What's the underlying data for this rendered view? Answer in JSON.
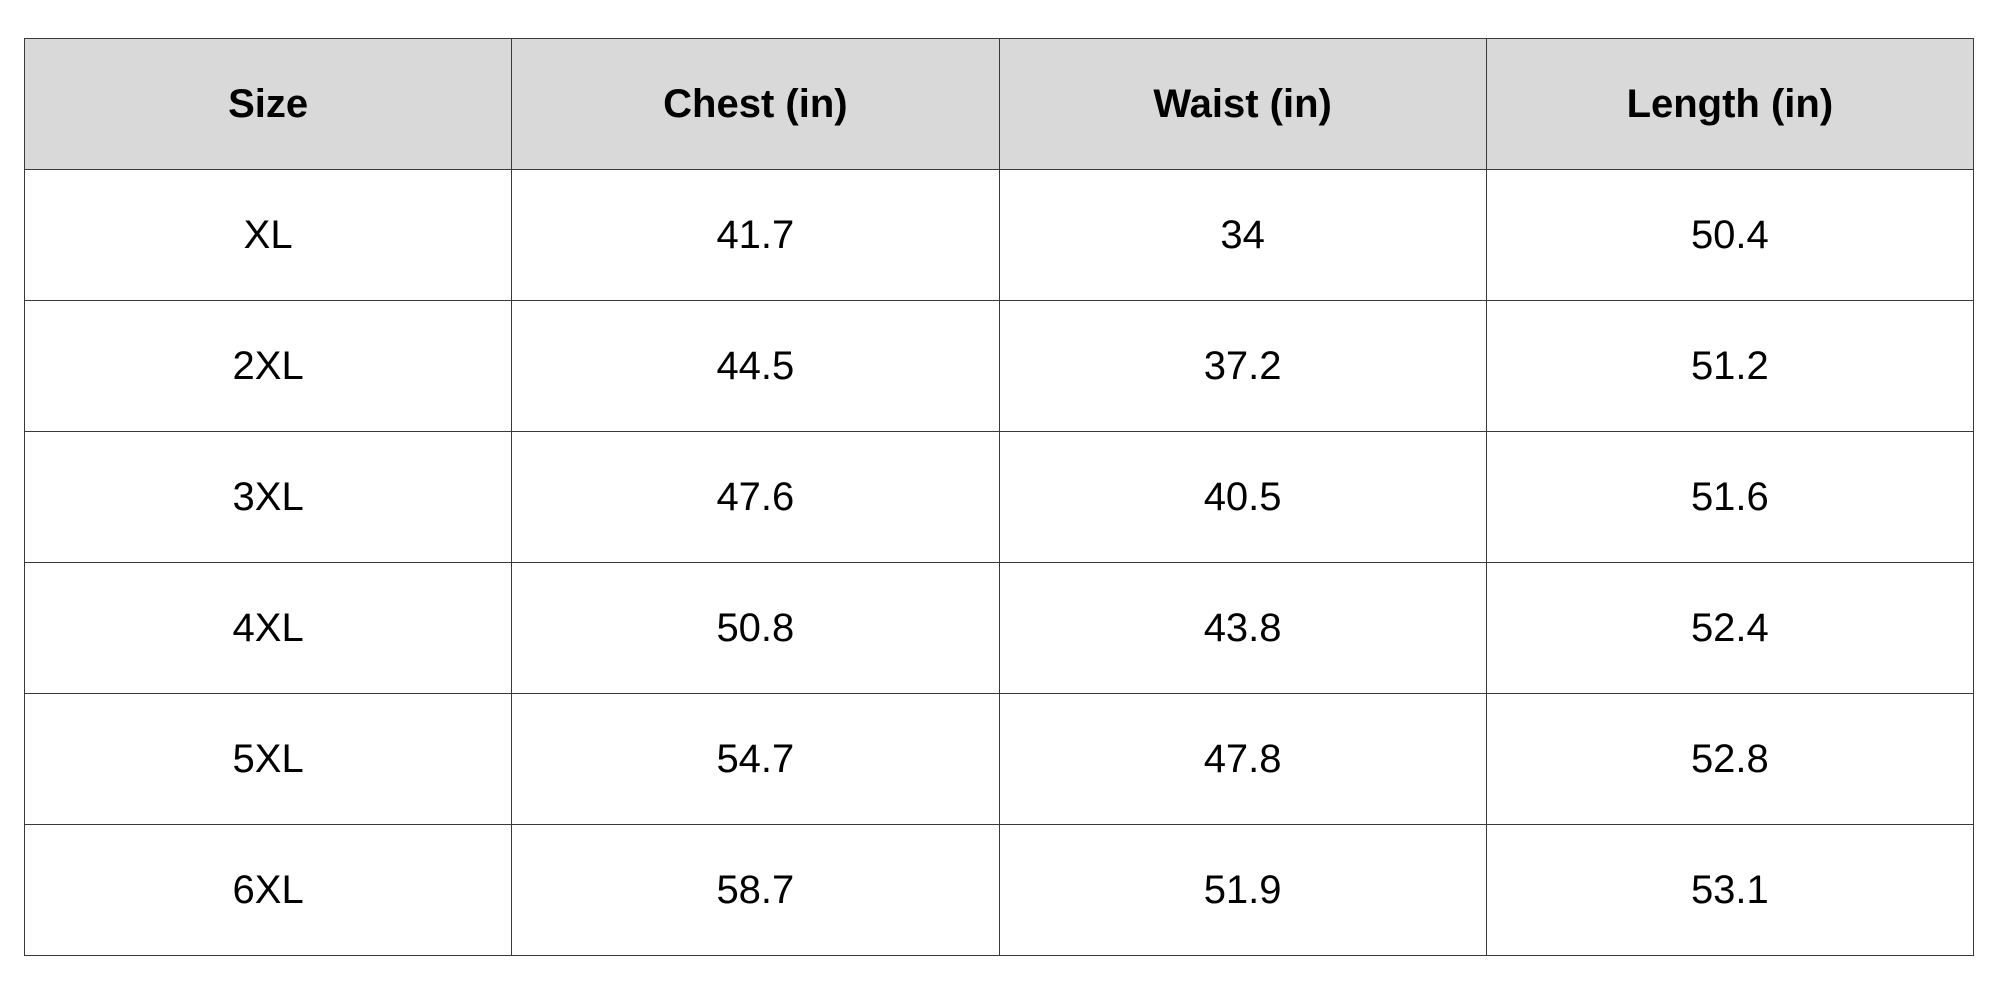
{
  "table": {
    "headers": [
      "Size",
      "Chest (in)",
      "Waist (in)",
      "Length (in)"
    ],
    "rows": [
      [
        "XL",
        "41.7",
        "34",
        "50.4"
      ],
      [
        "2XL",
        "44.5",
        "37.2",
        "51.2"
      ],
      [
        "3XL",
        "47.6",
        "40.5",
        "51.6"
      ],
      [
        "4XL",
        "50.8",
        "43.8",
        "52.4"
      ],
      [
        "5XL",
        "54.7",
        "47.8",
        "52.8"
      ],
      [
        "6XL",
        "58.7",
        "51.9",
        "53.1"
      ]
    ]
  },
  "colors": {
    "header_background": "#d9d9d9",
    "border": "#3a3a3a",
    "text": "#000000"
  }
}
